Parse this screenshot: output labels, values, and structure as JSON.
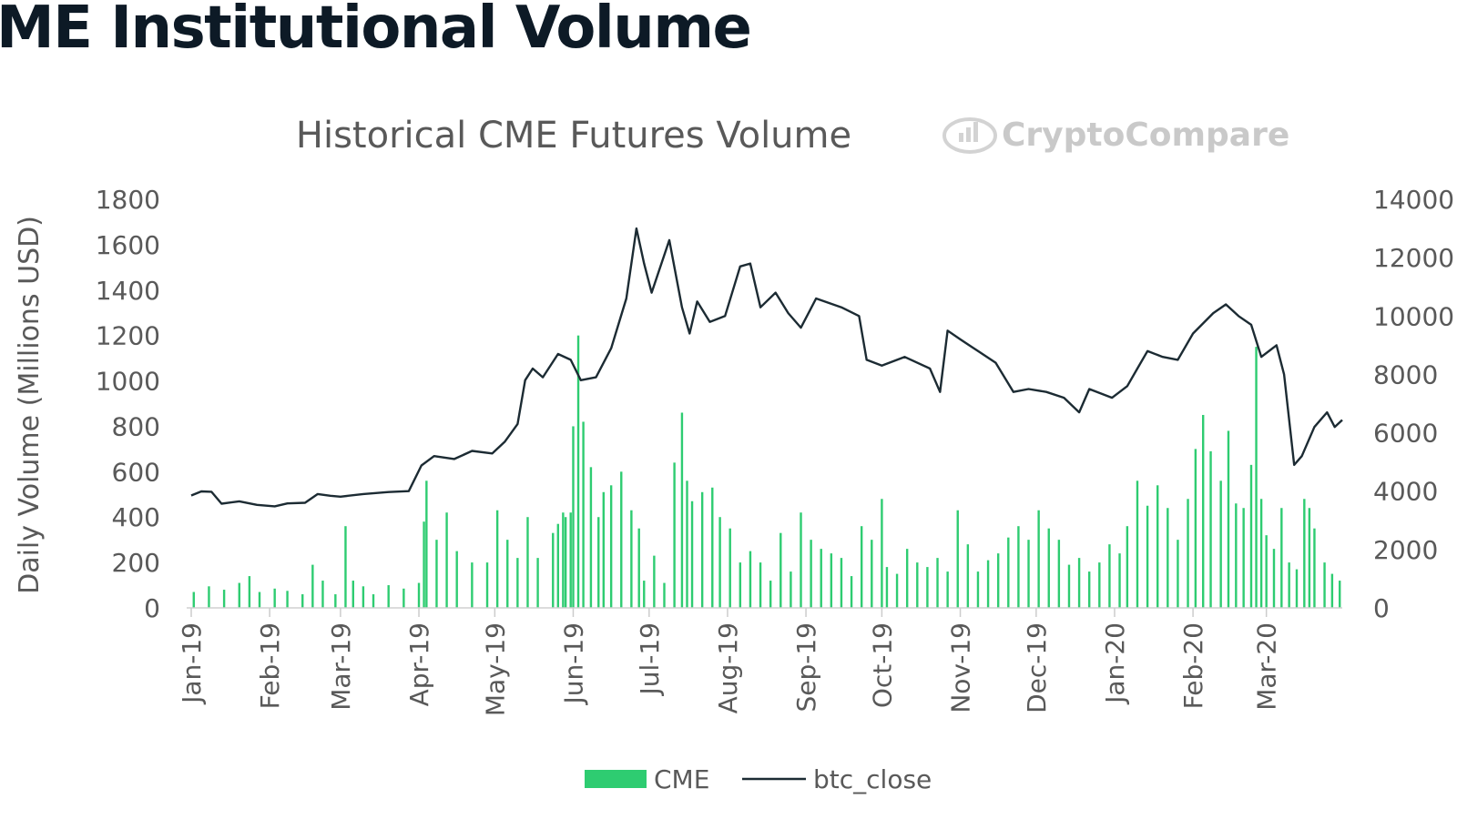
{
  "page": {
    "heading": "ME Institutional Volume"
  },
  "brand": {
    "watermark": "CryptoCompare",
    "logo_icon": "chart-coin-icon"
  },
  "colors": {
    "cme_bar": "#2ecc71",
    "btc_line": "#1c2b33",
    "watermark": "#c9c9c9"
  },
  "chart_data": {
    "type": "bar",
    "title": "Historical CME Futures Volume",
    "ylabel": "Daily Volume (Millions USD)",
    "ylim": [
      0,
      1800
    ],
    "y2lim": [
      0,
      14000
    ],
    "yticks": [
      "0",
      "200",
      "400",
      "600",
      "800",
      "1000",
      "1200",
      "1400",
      "1600",
      "1800"
    ],
    "y2ticks": [
      "0",
      "2000",
      "4000",
      "6000",
      "8000",
      "10000",
      "12000",
      "14000"
    ],
    "x_ticks": [
      "Jan-19",
      "Feb-19",
      "Mar-19",
      "Apr-19",
      "May-19",
      "Jun-19",
      "Jul-19",
      "Aug-19",
      "Sep-19",
      "Oct-19",
      "Nov-19",
      "Dec-19",
      "Jan-20",
      "Feb-20",
      "Mar-20"
    ],
    "x_range": [
      "2019-01-01",
      "2020-03-31"
    ],
    "legend": {
      "position": "bottom",
      "items": [
        "CME",
        "btc_close"
      ]
    },
    "grid": false,
    "series": [
      {
        "name": "CME",
        "type": "bar",
        "axis": "left",
        "points": [
          [
            "2019-01-02",
            70
          ],
          [
            "2019-01-08",
            95
          ],
          [
            "2019-01-14",
            80
          ],
          [
            "2019-01-20",
            110
          ],
          [
            "2019-01-24",
            140
          ],
          [
            "2019-01-28",
            70
          ],
          [
            "2019-02-03",
            85
          ],
          [
            "2019-02-08",
            75
          ],
          [
            "2019-02-14",
            60
          ],
          [
            "2019-02-18",
            190
          ],
          [
            "2019-02-22",
            120
          ],
          [
            "2019-02-27",
            60
          ],
          [
            "2019-03-03",
            360
          ],
          [
            "2019-03-06",
            120
          ],
          [
            "2019-03-10",
            95
          ],
          [
            "2019-03-14",
            60
          ],
          [
            "2019-03-20",
            100
          ],
          [
            "2019-03-26",
            85
          ],
          [
            "2019-04-01",
            110
          ],
          [
            "2019-04-03",
            380
          ],
          [
            "2019-04-04",
            560
          ],
          [
            "2019-04-08",
            300
          ],
          [
            "2019-04-12",
            420
          ],
          [
            "2019-04-16",
            250
          ],
          [
            "2019-04-22",
            200
          ],
          [
            "2019-04-28",
            200
          ],
          [
            "2019-05-02",
            430
          ],
          [
            "2019-05-06",
            300
          ],
          [
            "2019-05-10",
            220
          ],
          [
            "2019-05-14",
            400
          ],
          [
            "2019-05-18",
            220
          ],
          [
            "2019-05-24",
            330
          ],
          [
            "2019-05-26",
            370
          ],
          [
            "2019-05-28",
            420
          ],
          [
            "2019-05-29",
            400
          ],
          [
            "2019-05-31",
            420
          ],
          [
            "2019-06-01",
            800
          ],
          [
            "2019-06-03",
            1200
          ],
          [
            "2019-06-05",
            820
          ],
          [
            "2019-06-08",
            620
          ],
          [
            "2019-06-11",
            400
          ],
          [
            "2019-06-13",
            510
          ],
          [
            "2019-06-16",
            540
          ],
          [
            "2019-06-20",
            600
          ],
          [
            "2019-06-24",
            430
          ],
          [
            "2019-06-27",
            350
          ],
          [
            "2019-06-29",
            120
          ],
          [
            "2019-07-03",
            230
          ],
          [
            "2019-07-07",
            110
          ],
          [
            "2019-07-11",
            640
          ],
          [
            "2019-07-14",
            860
          ],
          [
            "2019-07-16",
            560
          ],
          [
            "2019-07-18",
            470
          ],
          [
            "2019-07-22",
            510
          ],
          [
            "2019-07-26",
            530
          ],
          [
            "2019-07-29",
            400
          ],
          [
            "2019-08-02",
            350
          ],
          [
            "2019-08-06",
            200
          ],
          [
            "2019-08-10",
            250
          ],
          [
            "2019-08-14",
            200
          ],
          [
            "2019-08-18",
            120
          ],
          [
            "2019-08-22",
            330
          ],
          [
            "2019-08-26",
            160
          ],
          [
            "2019-08-30",
            420
          ],
          [
            "2019-09-03",
            300
          ],
          [
            "2019-09-07",
            260
          ],
          [
            "2019-09-11",
            240
          ],
          [
            "2019-09-15",
            220
          ],
          [
            "2019-09-19",
            140
          ],
          [
            "2019-09-23",
            360
          ],
          [
            "2019-09-27",
            300
          ],
          [
            "2019-10-01",
            480
          ],
          [
            "2019-10-03",
            180
          ],
          [
            "2019-10-07",
            150
          ],
          [
            "2019-10-11",
            260
          ],
          [
            "2019-10-15",
            200
          ],
          [
            "2019-10-19",
            180
          ],
          [
            "2019-10-23",
            220
          ],
          [
            "2019-10-27",
            160
          ],
          [
            "2019-10-31",
            430
          ],
          [
            "2019-11-04",
            280
          ],
          [
            "2019-11-08",
            160
          ],
          [
            "2019-11-12",
            210
          ],
          [
            "2019-11-16",
            240
          ],
          [
            "2019-11-20",
            310
          ],
          [
            "2019-11-24",
            360
          ],
          [
            "2019-11-28",
            300
          ],
          [
            "2019-12-02",
            430
          ],
          [
            "2019-12-06",
            350
          ],
          [
            "2019-12-10",
            300
          ],
          [
            "2019-12-14",
            190
          ],
          [
            "2019-12-18",
            220
          ],
          [
            "2019-12-22",
            160
          ],
          [
            "2019-12-26",
            200
          ],
          [
            "2019-12-30",
            280
          ],
          [
            "2020-01-03",
            240
          ],
          [
            "2020-01-06",
            360
          ],
          [
            "2020-01-10",
            560
          ],
          [
            "2020-01-14",
            450
          ],
          [
            "2020-01-18",
            540
          ],
          [
            "2020-01-22",
            440
          ],
          [
            "2020-01-26",
            300
          ],
          [
            "2020-01-30",
            480
          ],
          [
            "2020-02-02",
            700
          ],
          [
            "2020-02-05",
            850
          ],
          [
            "2020-02-08",
            690
          ],
          [
            "2020-02-12",
            560
          ],
          [
            "2020-02-15",
            780
          ],
          [
            "2020-02-18",
            460
          ],
          [
            "2020-02-21",
            440
          ],
          [
            "2020-02-24",
            630
          ],
          [
            "2020-02-26",
            1150
          ],
          [
            "2020-02-28",
            480
          ],
          [
            "2020-03-01",
            320
          ],
          [
            "2020-03-04",
            260
          ],
          [
            "2020-03-07",
            440
          ],
          [
            "2020-03-10",
            200
          ],
          [
            "2020-03-13",
            170
          ],
          [
            "2020-03-16",
            480
          ],
          [
            "2020-03-18",
            440
          ],
          [
            "2020-03-20",
            350
          ],
          [
            "2020-03-24",
            200
          ],
          [
            "2020-03-27",
            150
          ],
          [
            "2020-03-30",
            120
          ]
        ]
      },
      {
        "name": "btc_close",
        "type": "line",
        "axis": "right",
        "points": [
          [
            "2019-01-01",
            3850
          ],
          [
            "2019-01-05",
            3990
          ],
          [
            "2019-01-09",
            3980
          ],
          [
            "2019-01-13",
            3570
          ],
          [
            "2019-01-20",
            3650
          ],
          [
            "2019-01-27",
            3530
          ],
          [
            "2019-02-03",
            3480
          ],
          [
            "2019-02-08",
            3580
          ],
          [
            "2019-02-15",
            3600
          ],
          [
            "2019-02-20",
            3900
          ],
          [
            "2019-02-25",
            3840
          ],
          [
            "2019-03-01",
            3810
          ],
          [
            "2019-03-10",
            3900
          ],
          [
            "2019-03-20",
            3970
          ],
          [
            "2019-03-28",
            4000
          ],
          [
            "2019-04-02",
            4880
          ],
          [
            "2019-04-07",
            5200
          ],
          [
            "2019-04-15",
            5100
          ],
          [
            "2019-04-22",
            5380
          ],
          [
            "2019-04-30",
            5290
          ],
          [
            "2019-05-05",
            5700
          ],
          [
            "2019-05-10",
            6300
          ],
          [
            "2019-05-13",
            7800
          ],
          [
            "2019-05-16",
            8200
          ],
          [
            "2019-05-20",
            7900
          ],
          [
            "2019-05-26",
            8700
          ],
          [
            "2019-05-31",
            8500
          ],
          [
            "2019-06-04",
            7800
          ],
          [
            "2019-06-10",
            7900
          ],
          [
            "2019-06-16",
            8900
          ],
          [
            "2019-06-22",
            10600
          ],
          [
            "2019-06-26",
            13000
          ],
          [
            "2019-06-29",
            11800
          ],
          [
            "2019-07-02",
            10800
          ],
          [
            "2019-07-09",
            12600
          ],
          [
            "2019-07-14",
            10300
          ],
          [
            "2019-07-17",
            9400
          ],
          [
            "2019-07-20",
            10500
          ],
          [
            "2019-07-25",
            9800
          ],
          [
            "2019-07-31",
            10000
          ],
          [
            "2019-08-06",
            11700
          ],
          [
            "2019-08-10",
            11800
          ],
          [
            "2019-08-14",
            10300
          ],
          [
            "2019-08-20",
            10800
          ],
          [
            "2019-08-25",
            10100
          ],
          [
            "2019-08-30",
            9600
          ],
          [
            "2019-09-05",
            10600
          ],
          [
            "2019-09-15",
            10300
          ],
          [
            "2019-09-22",
            10000
          ],
          [
            "2019-09-25",
            8500
          ],
          [
            "2019-10-01",
            8300
          ],
          [
            "2019-10-10",
            8600
          ],
          [
            "2019-10-20",
            8200
          ],
          [
            "2019-10-24",
            7400
          ],
          [
            "2019-10-27",
            9500
          ],
          [
            "2019-11-01",
            9200
          ],
          [
            "2019-11-08",
            8800
          ],
          [
            "2019-11-15",
            8400
          ],
          [
            "2019-11-22",
            7400
          ],
          [
            "2019-11-28",
            7500
          ],
          [
            "2019-12-05",
            7400
          ],
          [
            "2019-12-12",
            7200
          ],
          [
            "2019-12-18",
            6700
          ],
          [
            "2019-12-22",
            7500
          ],
          [
            "2019-12-31",
            7200
          ],
          [
            "2020-01-06",
            7600
          ],
          [
            "2020-01-10",
            8200
          ],
          [
            "2020-01-14",
            8800
          ],
          [
            "2020-01-20",
            8600
          ],
          [
            "2020-01-26",
            8500
          ],
          [
            "2020-02-01",
            9400
          ],
          [
            "2020-02-09",
            10100
          ],
          [
            "2020-02-14",
            10400
          ],
          [
            "2020-02-19",
            10000
          ],
          [
            "2020-02-24",
            9700
          ],
          [
            "2020-02-28",
            8600
          ],
          [
            "2020-03-05",
            9000
          ],
          [
            "2020-03-08",
            8000
          ],
          [
            "2020-03-12",
            4900
          ],
          [
            "2020-03-15",
            5200
          ],
          [
            "2020-03-20",
            6200
          ],
          [
            "2020-03-25",
            6700
          ],
          [
            "2020-03-28",
            6200
          ],
          [
            "2020-03-31",
            6440
          ]
        ]
      }
    ]
  }
}
